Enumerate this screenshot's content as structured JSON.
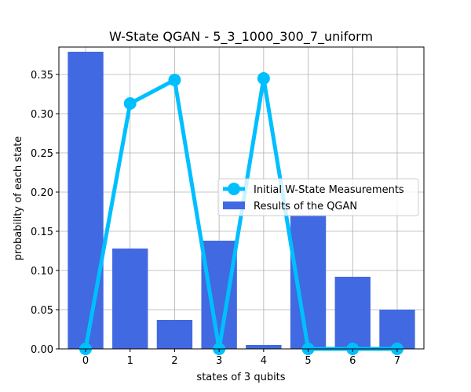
{
  "chart_data": {
    "type": "bar",
    "title": "W-State QGAN - 5_3_1000_300_7_uniform",
    "xlabel": "states of 3 qubits",
    "ylabel": "probability of each state",
    "categories": [
      "0",
      "1",
      "2",
      "3",
      "4",
      "5",
      "6",
      "7"
    ],
    "ylim": [
      0,
      0.385
    ],
    "yticks": [
      "0.00",
      "0.05",
      "0.10",
      "0.15",
      "0.20",
      "0.25",
      "0.30",
      "0.35"
    ],
    "grid": true,
    "legend_position": "center-right",
    "series": [
      {
        "name": "Initial W-State Measurements",
        "type": "line",
        "color": "#00bfff",
        "values": [
          0.0,
          0.313,
          0.343,
          0.0,
          0.345,
          0.0,
          0.0,
          0.0
        ]
      },
      {
        "name": "Results of the QGAN",
        "type": "bar",
        "color": "#4169e1",
        "values": [
          0.379,
          0.128,
          0.037,
          0.138,
          0.005,
          0.17,
          0.092,
          0.05
        ]
      }
    ]
  }
}
